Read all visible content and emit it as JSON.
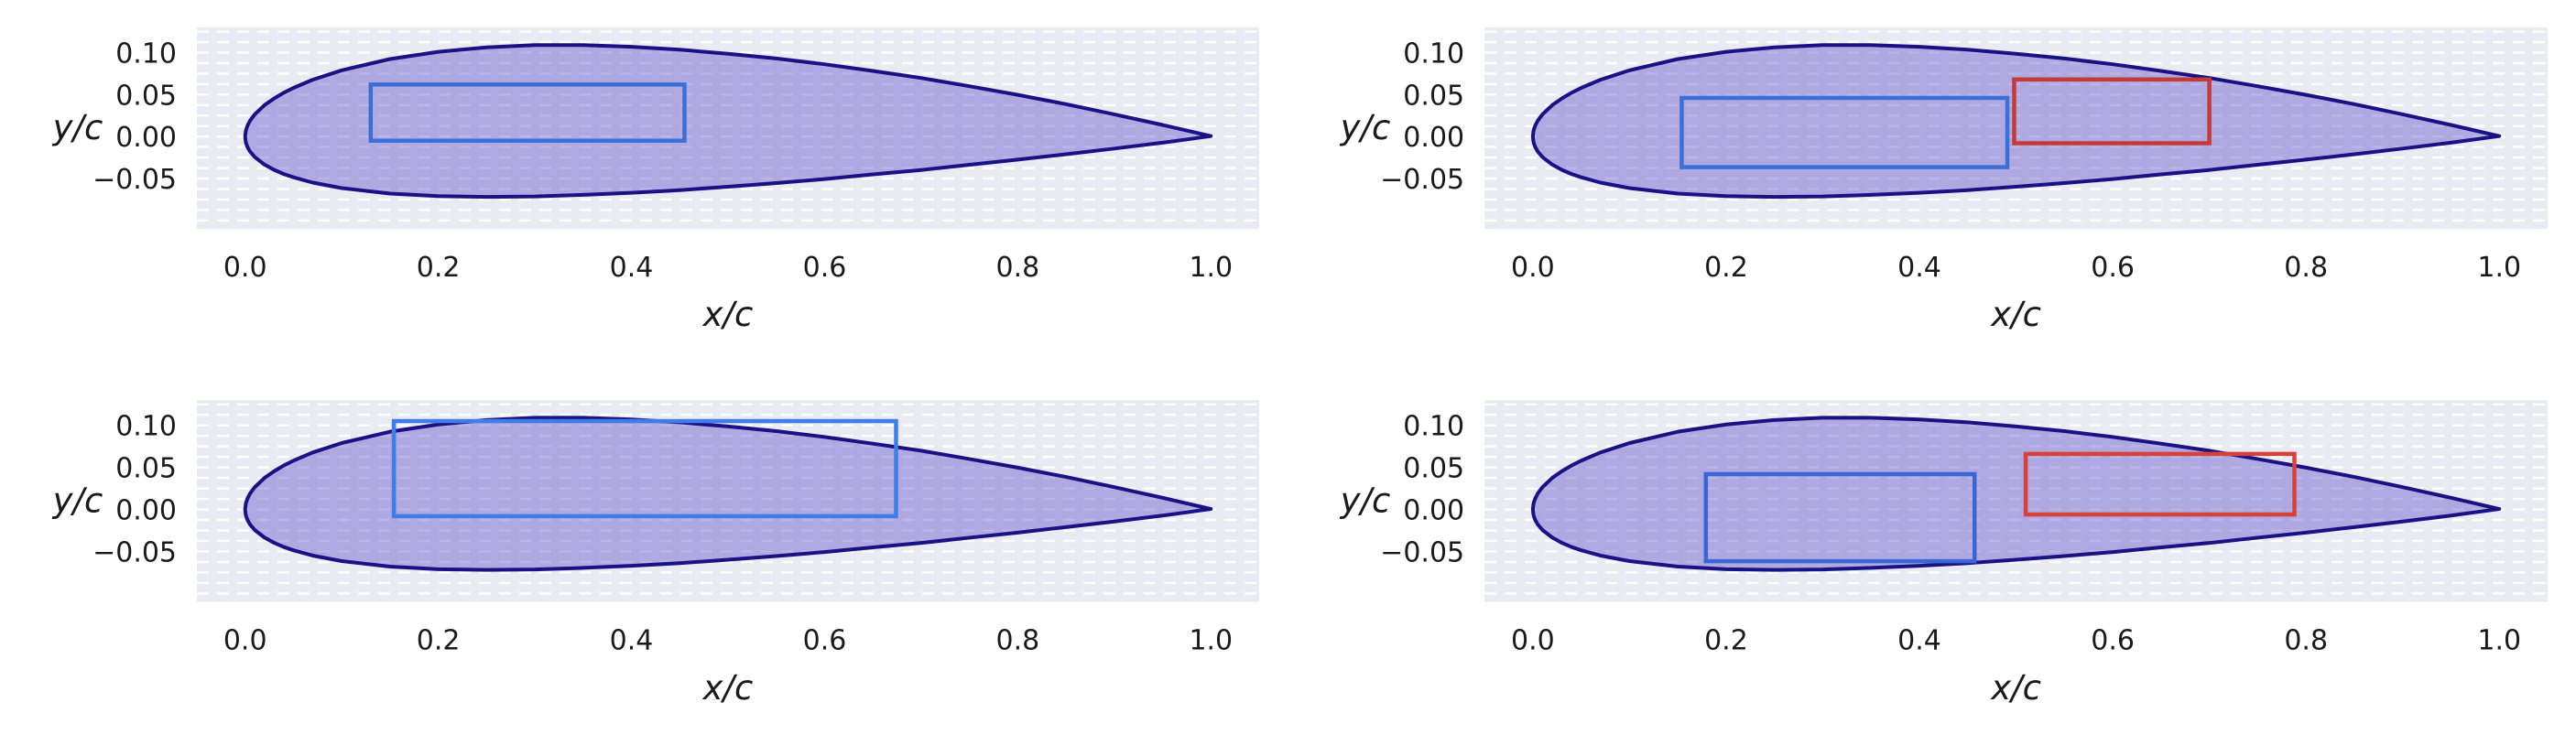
{
  "figure": {
    "description": "2x2 grid of airfoil cross-section plots with internal rectangular structure boxes"
  },
  "chart_data": {
    "type": "area",
    "title": "",
    "xlabel": "x/c",
    "ylabel": "y/c",
    "x_ticks": [
      0.0,
      0.2,
      0.4,
      0.6,
      0.8,
      1.0
    ],
    "x_tick_labels": [
      "0.0",
      "0.2",
      "0.4",
      "0.6",
      "0.8",
      "1.0"
    ],
    "y_ticks": [
      0.1,
      0.05,
      0.0,
      -0.05
    ],
    "y_tick_labels": [
      "0.10",
      "0.05",
      "0.00",
      "−0.05"
    ],
    "xlim": [
      -0.05,
      1.05
    ],
    "ylim": [
      -0.11,
      0.13
    ],
    "grid": "horizontal-dashed",
    "legend": "none",
    "style": {
      "plot_bg": "#eaeaf2",
      "grid_color": "#ffffff",
      "grid_step": 0.0125,
      "tick_color": "#1a1a1a",
      "label_color": "#1a1a1a"
    },
    "airfoil_style": {
      "fill": "#6a5acd",
      "fill_opacity": 0.45,
      "edge": "#191285",
      "edge_width": 4
    },
    "airfoil_outline": {
      "x": [
        0,
        0.0005,
        0.001,
        0.0025,
        0.005,
        0.01,
        0.02,
        0.03,
        0.04,
        0.05,
        0.07,
        0.1,
        0.15,
        0.2,
        0.25,
        0.3,
        0.35,
        0.4,
        0.45,
        0.5,
        0.55,
        0.6,
        0.65,
        0.7,
        0.75,
        0.8,
        0.85,
        0.9,
        0.95,
        1.0
      ],
      "y_upper": [
        0,
        0.006,
        0.0084,
        0.0133,
        0.0188,
        0.0266,
        0.0374,
        0.0455,
        0.0522,
        0.058,
        0.0677,
        0.079,
        0.0924,
        0.101,
        0.1063,
        0.109,
        0.1089,
        0.107,
        0.1035,
        0.0987,
        0.093,
        0.0862,
        0.0782,
        0.0698,
        0.06,
        0.0497,
        0.0386,
        0.0265,
        0.0138,
        0.0005
      ],
      "y_lower": [
        0,
        -0.0059,
        -0.0082,
        -0.0128,
        -0.0178,
        -0.0246,
        -0.0334,
        -0.0397,
        -0.0446,
        -0.0486,
        -0.0549,
        -0.0615,
        -0.068,
        -0.071,
        -0.0719,
        -0.0714,
        -0.0695,
        -0.067,
        -0.0638,
        -0.0598,
        -0.0555,
        -0.0506,
        -0.0451,
        -0.0398,
        -0.0336,
        -0.0275,
        -0.0211,
        -0.0143,
        -0.0074,
        0.0005
      ]
    },
    "panels": [
      {
        "id": "top-left",
        "boxes": [
          {
            "name": "structure-box-blue",
            "x": [
              0.13,
              0.455
            ],
            "y": [
              -0.005,
              0.062
            ],
            "color": "#3a6fd8"
          }
        ]
      },
      {
        "id": "top-right",
        "boxes": [
          {
            "name": "structure-box-blue",
            "x": [
              0.154,
              0.491
            ],
            "y": [
              -0.0365,
              0.046
            ],
            "color": "#3a6fd8"
          },
          {
            "name": "structure-box-red",
            "x": [
              0.498,
              0.7
            ],
            "y": [
              -0.008,
              0.068
            ],
            "color": "#c43a36"
          }
        ]
      },
      {
        "id": "bottom-left",
        "boxes": [
          {
            "name": "structure-box-blue",
            "x": [
              0.154,
              0.674
            ],
            "y": [
              -0.008,
              0.105
            ],
            "color": "#3f7de8"
          }
        ]
      },
      {
        "id": "bottom-right",
        "boxes": [
          {
            "name": "structure-box-blue",
            "x": [
              0.179,
              0.457
            ],
            "y": [
              -0.0615,
              0.042
            ],
            "color": "#3a66d6"
          },
          {
            "name": "structure-box-red",
            "x": [
              0.51,
              0.788
            ],
            "y": [
              -0.006,
              0.066
            ],
            "color": "#d8403a"
          }
        ]
      }
    ]
  }
}
